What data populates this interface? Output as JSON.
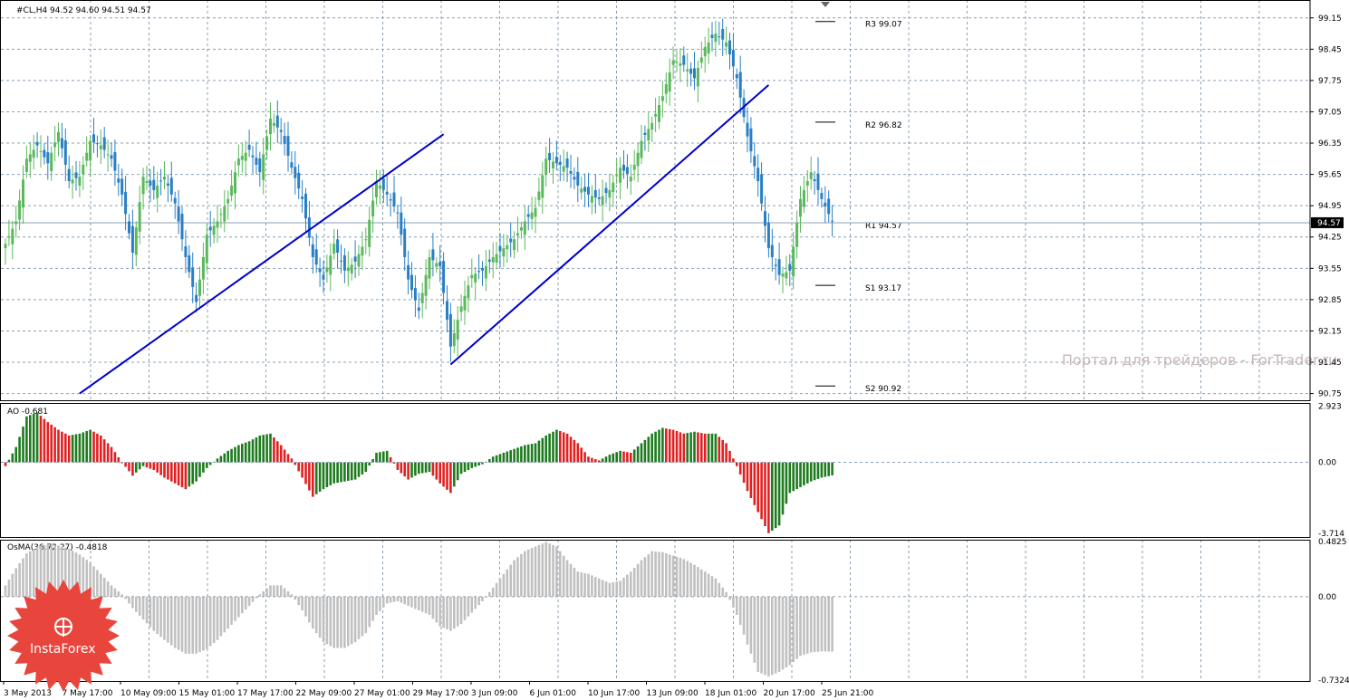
{
  "chart_data": {
    "type": "candlestick",
    "symbol_header": "#CL,H4  94.52 94.60 94.51 94.57",
    "price_axis": {
      "ylim": [
        90.6,
        99.55
      ],
      "ticks": [
        "99.15",
        "98.45",
        "97.75",
        "97.05",
        "96.35",
        "95.65",
        "94.95",
        "94.25",
        "93.55",
        "92.85",
        "92.15",
        "91.45",
        "90.75"
      ],
      "current_price": "94.57"
    },
    "pivot_levels": [
      {
        "label": "R3 99.07",
        "value": 99.07
      },
      {
        "label": "R2 96.82",
        "value": 96.82
      },
      {
        "label": "R1 94.57",
        "value": 94.57
      },
      {
        "label": "S1 93.17",
        "value": 93.17
      },
      {
        "label": "S2 90.92",
        "value": 90.92
      }
    ],
    "time_axis": {
      "labels": [
        "3 May 2013",
        "7 May 17:00",
        "10 May 09:00",
        "15 May 01:00",
        "17 May 17:00",
        "22 May 09:00",
        "27 May 01:00",
        "29 May 17:00",
        "3 Jun 09:00",
        "6 Jun 01:00",
        "10 Jun 17:00",
        "13 Jun 09:00",
        "18 Jun 01:00",
        "20 Jun 17:00",
        "25 Jun 21:00"
      ]
    },
    "price_anchors": [
      [
        0,
        94.1
      ],
      [
        3,
        94.6
      ],
      [
        6,
        96.0
      ],
      [
        9,
        96.3
      ],
      [
        12,
        95.9
      ],
      [
        15,
        96.6
      ],
      [
        18,
        95.5
      ],
      [
        21,
        95.6
      ],
      [
        24,
        96.4
      ],
      [
        27,
        96.3
      ],
      [
        30,
        96.0
      ],
      [
        33,
        95.2
      ],
      [
        36,
        93.9
      ],
      [
        39,
        95.6
      ],
      [
        42,
        95.3
      ],
      [
        45,
        95.6
      ],
      [
        48,
        95.0
      ],
      [
        51,
        93.8
      ],
      [
        54,
        92.8
      ],
      [
        57,
        94.3
      ],
      [
        60,
        94.6
      ],
      [
        63,
        95.1
      ],
      [
        66,
        96.0
      ],
      [
        69,
        96.2
      ],
      [
        72,
        95.7
      ],
      [
        75,
        96.9
      ],
      [
        78,
        96.6
      ],
      [
        81,
        95.8
      ],
      [
        84,
        95.1
      ],
      [
        87,
        93.8
      ],
      [
        90,
        93.3
      ],
      [
        93,
        94.1
      ],
      [
        96,
        93.5
      ],
      [
        99,
        93.7
      ],
      [
        102,
        94.2
      ],
      [
        105,
        95.5
      ],
      [
        108,
        95.2
      ],
      [
        111,
        94.8
      ],
      [
        114,
        93.3
      ],
      [
        117,
        92.6
      ],
      [
        120,
        93.8
      ],
      [
        123,
        93.6
      ],
      [
        126,
        91.8
      ],
      [
        129,
        92.7
      ],
      [
        132,
        93.4
      ],
      [
        135,
        93.5
      ],
      [
        138,
        93.8
      ],
      [
        141,
        94.0
      ],
      [
        144,
        94.2
      ],
      [
        147,
        94.6
      ],
      [
        150,
        94.9
      ],
      [
        153,
        96.0
      ],
      [
        156,
        95.9
      ],
      [
        159,
        95.8
      ],
      [
        162,
        95.4
      ],
      [
        165,
        95.2
      ],
      [
        168,
        95.1
      ],
      [
        171,
        95.3
      ],
      [
        174,
        95.8
      ],
      [
        177,
        95.6
      ],
      [
        180,
        96.4
      ],
      [
        183,
        96.8
      ],
      [
        186,
        97.4
      ],
      [
        189,
        98.2
      ],
      [
        192,
        98.1
      ],
      [
        195,
        97.8
      ],
      [
        198,
        98.5
      ],
      [
        201,
        98.8
      ],
      [
        204,
        98.6
      ],
      [
        207,
        97.8
      ],
      [
        210,
        96.5
      ],
      [
        213,
        95.5
      ],
      [
        216,
        94.0
      ],
      [
        219,
        93.4
      ],
      [
        222,
        93.5
      ],
      [
        225,
        95.1
      ],
      [
        228,
        95.7
      ],
      [
        231,
        95.1
      ],
      [
        234,
        94.6
      ]
    ],
    "trendlines": [
      {
        "from": [
          21,
          90.75
        ],
        "to": [
          124,
          96.55
        ]
      },
      {
        "from": [
          126,
          91.4
        ],
        "to": [
          216,
          97.65
        ]
      }
    ],
    "ao_panel": {
      "label": "AO -0.681",
      "ylim": [
        -3.9,
        3.1
      ],
      "ticks": [
        "2.923",
        "0.00",
        "-3.714"
      ],
      "anchors": [
        [
          0,
          -0.2
        ],
        [
          3,
          0.8
        ],
        [
          6,
          2.4
        ],
        [
          9,
          2.6
        ],
        [
          12,
          2.1
        ],
        [
          15,
          1.7
        ],
        [
          18,
          1.4
        ],
        [
          21,
          1.5
        ],
        [
          24,
          1.7
        ],
        [
          27,
          1.4
        ],
        [
          30,
          0.8
        ],
        [
          33,
          0.0
        ],
        [
          36,
          -0.7
        ],
        [
          39,
          -0.2
        ],
        [
          42,
          -0.4
        ],
        [
          45,
          -0.8
        ],
        [
          48,
          -1.1
        ],
        [
          51,
          -1.4
        ],
        [
          54,
          -1.0
        ],
        [
          57,
          -0.3
        ],
        [
          60,
          0.2
        ],
        [
          63,
          0.6
        ],
        [
          66,
          0.9
        ],
        [
          69,
          1.1
        ],
        [
          72,
          1.4
        ],
        [
          75,
          1.5
        ],
        [
          78,
          0.9
        ],
        [
          81,
          0.2
        ],
        [
          84,
          -0.8
        ],
        [
          87,
          -1.8
        ],
        [
          90,
          -1.4
        ],
        [
          93,
          -1.1
        ],
        [
          96,
          -1.0
        ],
        [
          99,
          -0.9
        ],
        [
          102,
          -0.5
        ],
        [
          105,
          0.5
        ],
        [
          108,
          0.6
        ],
        [
          111,
          -0.4
        ],
        [
          114,
          -0.9
        ],
        [
          117,
          -0.6
        ],
        [
          120,
          -0.5
        ],
        [
          123,
          -1.1
        ],
        [
          126,
          -1.6
        ],
        [
          129,
          -0.6
        ],
        [
          132,
          -0.3
        ],
        [
          135,
          -0.1
        ],
        [
          138,
          0.3
        ],
        [
          141,
          0.5
        ],
        [
          144,
          0.7
        ],
        [
          147,
          0.9
        ],
        [
          150,
          1.0
        ],
        [
          153,
          1.4
        ],
        [
          156,
          1.7
        ],
        [
          159,
          1.5
        ],
        [
          162,
          1.0
        ],
        [
          165,
          0.3
        ],
        [
          168,
          0.1
        ],
        [
          171,
          0.4
        ],
        [
          174,
          0.6
        ],
        [
          177,
          0.5
        ],
        [
          180,
          1.0
        ],
        [
          183,
          1.5
        ],
        [
          186,
          1.8
        ],
        [
          189,
          1.7
        ],
        [
          192,
          1.5
        ],
        [
          195,
          1.6
        ],
        [
          198,
          1.5
        ],
        [
          201,
          1.5
        ],
        [
          204,
          1.0
        ],
        [
          207,
          -0.2
        ],
        [
          210,
          -1.5
        ],
        [
          213,
          -2.6
        ],
        [
          216,
          -3.7
        ],
        [
          219,
          -3.3
        ],
        [
          222,
          -1.6
        ],
        [
          225,
          -1.3
        ],
        [
          228,
          -1.0
        ],
        [
          231,
          -0.8
        ],
        [
          234,
          -0.681
        ]
      ]
    },
    "osma_panel": {
      "label": "OsMA(36,72,27) -0.4818",
      "ylim": [
        -0.74,
        0.5
      ],
      "ticks": [
        "0.4825",
        "0.00",
        "-0.7324"
      ],
      "anchors": [
        [
          0,
          0.1
        ],
        [
          3,
          0.25
        ],
        [
          6,
          0.38
        ],
        [
          9,
          0.44
        ],
        [
          12,
          0.46
        ],
        [
          15,
          0.45
        ],
        [
          18,
          0.42
        ],
        [
          21,
          0.37
        ],
        [
          24,
          0.3
        ],
        [
          27,
          0.2
        ],
        [
          30,
          0.1
        ],
        [
          33,
          0.02
        ],
        [
          36,
          -0.1
        ],
        [
          39,
          -0.2
        ],
        [
          42,
          -0.3
        ],
        [
          45,
          -0.38
        ],
        [
          48,
          -0.45
        ],
        [
          51,
          -0.5
        ],
        [
          54,
          -0.5
        ],
        [
          57,
          -0.46
        ],
        [
          60,
          -0.38
        ],
        [
          63,
          -0.28
        ],
        [
          66,
          -0.18
        ],
        [
          69,
          -0.08
        ],
        [
          72,
          0.02
        ],
        [
          75,
          0.1
        ],
        [
          78,
          0.1
        ],
        [
          81,
          0.02
        ],
        [
          84,
          -0.12
        ],
        [
          87,
          -0.28
        ],
        [
          90,
          -0.4
        ],
        [
          93,
          -0.45
        ],
        [
          96,
          -0.45
        ],
        [
          99,
          -0.4
        ],
        [
          102,
          -0.32
        ],
        [
          105,
          -0.16
        ],
        [
          108,
          -0.06
        ],
        [
          111,
          -0.04
        ],
        [
          114,
          -0.08
        ],
        [
          117,
          -0.12
        ],
        [
          120,
          -0.16
        ],
        [
          123,
          -0.26
        ],
        [
          126,
          -0.3
        ],
        [
          129,
          -0.24
        ],
        [
          132,
          -0.14
        ],
        [
          135,
          -0.04
        ],
        [
          138,
          0.08
        ],
        [
          141,
          0.2
        ],
        [
          144,
          0.32
        ],
        [
          147,
          0.4
        ],
        [
          150,
          0.44
        ],
        [
          153,
          0.48
        ],
        [
          156,
          0.44
        ],
        [
          159,
          0.32
        ],
        [
          162,
          0.22
        ],
        [
          165,
          0.2
        ],
        [
          168,
          0.16
        ],
        [
          171,
          0.12
        ],
        [
          174,
          0.14
        ],
        [
          177,
          0.22
        ],
        [
          180,
          0.32
        ],
        [
          183,
          0.4
        ],
        [
          186,
          0.39
        ],
        [
          189,
          0.36
        ],
        [
          192,
          0.33
        ],
        [
          195,
          0.28
        ],
        [
          198,
          0.22
        ],
        [
          201,
          0.16
        ],
        [
          204,
          0.04
        ],
        [
          207,
          -0.16
        ],
        [
          210,
          -0.42
        ],
        [
          213,
          -0.66
        ],
        [
          216,
          -0.7
        ],
        [
          219,
          -0.66
        ],
        [
          222,
          -0.6
        ],
        [
          225,
          -0.52
        ],
        [
          228,
          -0.49
        ],
        [
          231,
          -0.48
        ],
        [
          234,
          -0.4818
        ]
      ]
    }
  },
  "watermark": "Портал для трейдеров - ForTrader.ru",
  "badge": {
    "label": "InstaForex",
    "color": "#e8453c"
  },
  "colors": {
    "bull": "#5cb85c",
    "bear": "#2a7fc4",
    "trend": "#0000cc",
    "ao_up": "#1e7b1e",
    "ao_down": "#e02020",
    "osma": "#c0c0c0",
    "grid": "#8ca0b4"
  }
}
